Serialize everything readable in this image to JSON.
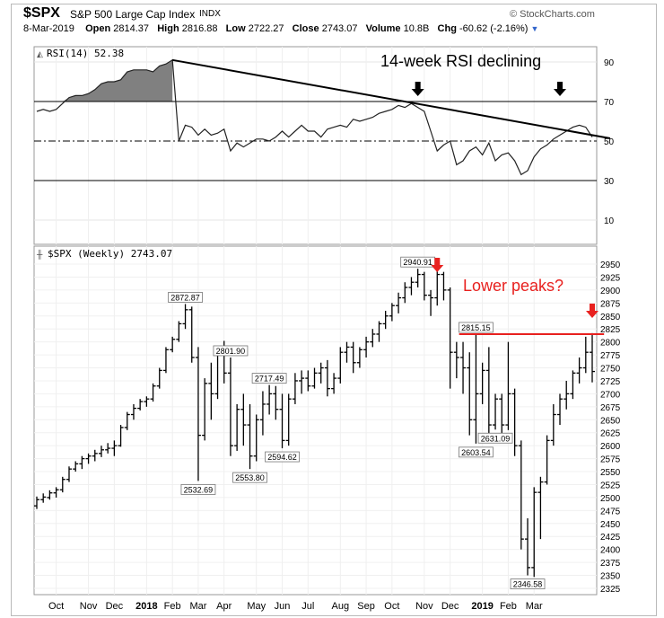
{
  "header": {
    "symbol": "$SPX",
    "name": "S&P 500 Large Cap Index",
    "exchange": "INDX",
    "brand": "© StockCharts.com",
    "date": "8-Mar-2019",
    "open_label": "Open",
    "open": "2814.37",
    "high_label": "High",
    "high": "2816.88",
    "low_label": "Low",
    "low": "2722.27",
    "close_label": "Close",
    "close": "2743.07",
    "volume_label": "Volume",
    "volume": "10.8B",
    "chg_label": "Chg",
    "chg": "-60.62 (-2.16%)"
  },
  "chart_data": [
    {
      "type": "line",
      "title": "RSI(14) 52.38",
      "annotation": "14-week RSI declining",
      "ylim": [
        0,
        100
      ],
      "y_ticks": [
        "90",
        "70",
        "50",
        "30",
        "10"
      ],
      "reference_lines": [
        70,
        50,
        30
      ],
      "series": [
        {
          "values": [
            65,
            66,
            65,
            66,
            69,
            72,
            73,
            73,
            74,
            76,
            79,
            80,
            80,
            81,
            85,
            86,
            86,
            86,
            85,
            88,
            89,
            91,
            50,
            58,
            57,
            53,
            56,
            53,
            54,
            56,
            45,
            49,
            47,
            49,
            51,
            51,
            50,
            52,
            55,
            52,
            55,
            58,
            55,
            55,
            52,
            56,
            57,
            58,
            57,
            61,
            60,
            61,
            62,
            64,
            65,
            66,
            68,
            67,
            69,
            67,
            65,
            55,
            45,
            48,
            50,
            38,
            40,
            45,
            47,
            43,
            49,
            40,
            43,
            44,
            40,
            33,
            35,
            42,
            46,
            48,
            51,
            53,
            55,
            57,
            58,
            57,
            52
          ]
        }
      ],
      "trendline": [
        {
          "x": 21,
          "y": 91
        },
        {
          "x": 86,
          "y": 53
        }
      ],
      "markers": [
        {
          "x": 59,
          "type": "down-arrow"
        },
        {
          "x": 81,
          "type": "down-arrow"
        }
      ]
    },
    {
      "type": "ohlc",
      "title": "$SPX (Weekly) 2743.07",
      "annotation": "Lower peaks?",
      "ylim": [
        2310,
        2960
      ],
      "y_ticks": [
        "2950",
        "2925",
        "2900",
        "2875",
        "2850",
        "2825",
        "2800",
        "2775",
        "2750",
        "2725",
        "2700",
        "2675",
        "2650",
        "2625",
        "2600",
        "2575",
        "2550",
        "2525",
        "2500",
        "2475",
        "2450",
        "2425",
        "2400",
        "2375",
        "2350",
        "2325"
      ],
      "x_ticks": [
        {
          "x": 3,
          "label": "Oct"
        },
        {
          "x": 8,
          "label": "Nov"
        },
        {
          "x": 12,
          "label": "Dec"
        },
        {
          "x": 17,
          "label": "2018",
          "bold": true
        },
        {
          "x": 21,
          "label": "Feb"
        },
        {
          "x": 25,
          "label": "Mar"
        },
        {
          "x": 29,
          "label": "Apr"
        },
        {
          "x": 34,
          "label": "May"
        },
        {
          "x": 38,
          "label": "Jun"
        },
        {
          "x": 42,
          "label": "Jul"
        },
        {
          "x": 47,
          "label": "Aug"
        },
        {
          "x": 51,
          "label": "Sep"
        },
        {
          "x": 55,
          "label": "Oct"
        },
        {
          "x": 60,
          "label": "Nov"
        },
        {
          "x": 64,
          "label": "Dec"
        },
        {
          "x": 69,
          "label": "2019",
          "bold": true
        },
        {
          "x": 73,
          "label": "Feb"
        },
        {
          "x": 77,
          "label": "Mar"
        }
      ],
      "ohlc": [
        [
          2484,
          2502,
          2478,
          2496
        ],
        [
          2496,
          2508,
          2490,
          2501
        ],
        [
          2500,
          2514,
          2496,
          2509
        ],
        [
          2509,
          2520,
          2500,
          2515
        ],
        [
          2515,
          2540,
          2510,
          2535
        ],
        [
          2535,
          2560,
          2530,
          2555
        ],
        [
          2555,
          2570,
          2550,
          2565
        ],
        [
          2565,
          2580,
          2555,
          2575
        ],
        [
          2575,
          2585,
          2565,
          2580
        ],
        [
          2580,
          2592,
          2570,
          2585
        ],
        [
          2585,
          2600,
          2578,
          2592
        ],
        [
          2592,
          2605,
          2585,
          2595
        ],
        [
          2595,
          2610,
          2580,
          2600
        ],
        [
          2600,
          2640,
          2598,
          2635
        ],
        [
          2635,
          2665,
          2630,
          2660
        ],
        [
          2660,
          2680,
          2650,
          2672
        ],
        [
          2672,
          2690,
          2668,
          2685
        ],
        [
          2685,
          2695,
          2675,
          2690
        ],
        [
          2690,
          2720,
          2685,
          2715
        ],
        [
          2715,
          2750,
          2710,
          2745
        ],
        [
          2745,
          2790,
          2740,
          2785
        ],
        [
          2785,
          2810,
          2780,
          2805
        ],
        [
          2805,
          2840,
          2800,
          2835
        ],
        [
          2835,
          2873,
          2825,
          2862
        ],
        [
          2862,
          2868,
          2760,
          2770
        ],
        [
          2770,
          2790,
          2532,
          2620
        ],
        [
          2620,
          2730,
          2610,
          2720
        ],
        [
          2720,
          2760,
          2650,
          2700
        ],
        [
          2700,
          2790,
          2690,
          2780
        ],
        [
          2780,
          2802,
          2720,
          2740
        ],
        [
          2740,
          2770,
          2580,
          2600
        ],
        [
          2600,
          2680,
          2590,
          2670
        ],
        [
          2670,
          2700,
          2600,
          2640
        ],
        [
          2640,
          2680,
          2555,
          2580
        ],
        [
          2580,
          2660,
          2570,
          2650
        ],
        [
          2650,
          2705,
          2620,
          2680
        ],
        [
          2680,
          2717,
          2660,
          2700
        ],
        [
          2700,
          2715,
          2650,
          2670
        ],
        [
          2670,
          2700,
          2595,
          2610
        ],
        [
          2610,
          2700,
          2600,
          2690
        ],
        [
          2690,
          2740,
          2680,
          2725
        ],
        [
          2725,
          2745,
          2700,
          2730
        ],
        [
          2730,
          2745,
          2705,
          2715
        ],
        [
          2715,
          2750,
          2710,
          2740
        ],
        [
          2740,
          2760,
          2720,
          2750
        ],
        [
          2750,
          2765,
          2695,
          2710
        ],
        [
          2710,
          2740,
          2700,
          2730
        ],
        [
          2730,
          2790,
          2720,
          2780
        ],
        [
          2780,
          2800,
          2760,
          2790
        ],
        [
          2790,
          2800,
          2740,
          2760
        ],
        [
          2760,
          2790,
          2750,
          2785
        ],
        [
          2785,
          2810,
          2770,
          2800
        ],
        [
          2800,
          2825,
          2790,
          2815
        ],
        [
          2815,
          2840,
          2800,
          2835
        ],
        [
          2835,
          2860,
          2825,
          2850
        ],
        [
          2850,
          2875,
          2840,
          2870
        ],
        [
          2870,
          2895,
          2855,
          2885
        ],
        [
          2885,
          2915,
          2875,
          2905
        ],
        [
          2905,
          2925,
          2890,
          2915
        ],
        [
          2915,
          2941,
          2905,
          2930
        ],
        [
          2930,
          2935,
          2880,
          2890
        ],
        [
          2890,
          2900,
          2850,
          2885
        ],
        [
          2885,
          2940,
          2870,
          2930
        ],
        [
          2930,
          2935,
          2880,
          2900
        ],
        [
          2900,
          2905,
          2710,
          2780
        ],
        [
          2780,
          2800,
          2730,
          2770
        ],
        [
          2770,
          2800,
          2700,
          2750
        ],
        [
          2750,
          2780,
          2620,
          2650
        ],
        [
          2650,
          2815,
          2604,
          2700
        ],
        [
          2700,
          2760,
          2680,
          2745
        ],
        [
          2745,
          2790,
          2620,
          2640
        ],
        [
          2640,
          2700,
          2631,
          2690
        ],
        [
          2690,
          2700,
          2620,
          2640
        ],
        [
          2640,
          2800,
          2630,
          2700
        ],
        [
          2700,
          2710,
          2580,
          2600
        ],
        [
          2600,
          2610,
          2400,
          2420
        ],
        [
          2420,
          2460,
          2350,
          2365
        ],
        [
          2365,
          2520,
          2347,
          2510
        ],
        [
          2510,
          2540,
          2420,
          2530
        ],
        [
          2530,
          2620,
          2525,
          2610
        ],
        [
          2610,
          2680,
          2600,
          2660
        ],
        [
          2660,
          2700,
          2640,
          2690
        ],
        [
          2690,
          2725,
          2670,
          2700
        ],
        [
          2700,
          2745,
          2690,
          2740
        ],
        [
          2740,
          2770,
          2720,
          2750
        ],
        [
          2750,
          2810,
          2740,
          2780
        ],
        [
          2780,
          2817,
          2722,
          2743
        ]
      ],
      "price_labels": [
        {
          "x": 23,
          "value": "2872.87",
          "pos": "above"
        },
        {
          "x": 25,
          "value": "2532.69",
          "pos": "below"
        },
        {
          "x": 30,
          "value": "2801.90",
          "pos": "above"
        },
        {
          "x": 33,
          "value": "2553.80",
          "pos": "below"
        },
        {
          "x": 36,
          "value": "2717.49",
          "pos": "above"
        },
        {
          "x": 38,
          "value": "2594.62",
          "pos": "below"
        },
        {
          "x": 59,
          "value": "2940.91",
          "pos": "above"
        },
        {
          "x": 68,
          "value": "2815.15",
          "pos": "above"
        },
        {
          "x": 68,
          "value": "2603.54",
          "pos": "below"
        },
        {
          "x": 71,
          "value": "2631.09",
          "pos": "below"
        },
        {
          "x": 76,
          "value": "2346.58",
          "pos": "below"
        }
      ],
      "resistance": {
        "x0": 64,
        "x1": 87,
        "y": 2815
      },
      "markers": [
        {
          "x": 62,
          "type": "down-arrow",
          "color": "#e8211f"
        },
        {
          "x": 86,
          "type": "down-arrow",
          "color": "#e8211f"
        }
      ]
    }
  ],
  "colors": {
    "accent": "#e8211f",
    "fill": "#808080",
    "grid": "#e6e6e6",
    "text": "#000000"
  }
}
